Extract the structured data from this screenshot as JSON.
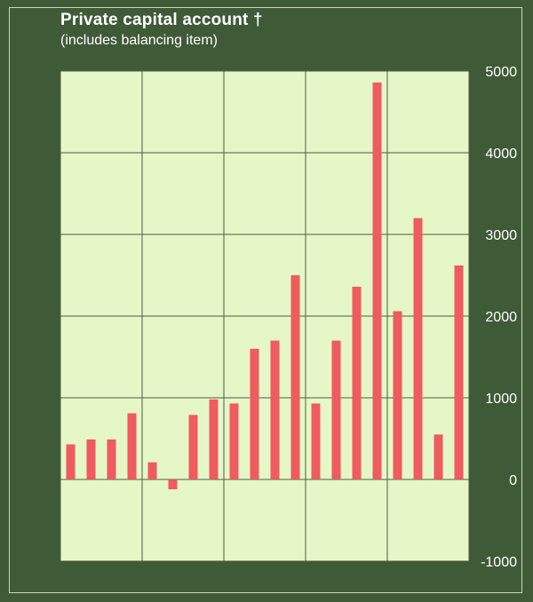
{
  "colors": {
    "background": "#3f5a37",
    "plot_area": "#e6f7c7",
    "bar": "#ef5b5e",
    "grid": "#4b5d3f",
    "tick_text": "#ffffff"
  },
  "chart_data": {
    "type": "bar",
    "title": "Private capital account †",
    "subtitle": "(includes balancing item)",
    "xlabel": "",
    "ylabel": "",
    "ylim": [
      -1000,
      5000
    ],
    "y_ticks": [
      -1000,
      0,
      1000,
      2000,
      3000,
      4000,
      5000
    ],
    "y_tick_labels": [
      "-1000",
      "0",
      "1000",
      "2000",
      "3000",
      "4000",
      "5000"
    ],
    "grid": true,
    "x_groups": 5,
    "values": [
      430,
      490,
      490,
      810,
      210,
      -120,
      790,
      980,
      930,
      1600,
      1700,
      2500,
      930,
      1700,
      2360,
      4860,
      2060,
      3200,
      550,
      2620
    ]
  }
}
